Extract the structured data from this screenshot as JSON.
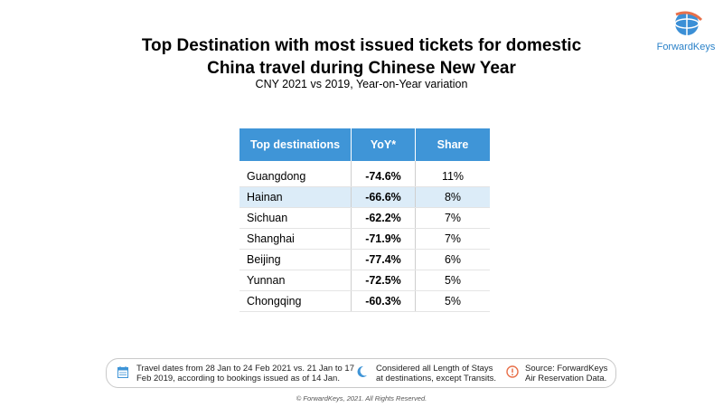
{
  "header": {
    "title_line1": "Top Destination with most issued tickets for domestic",
    "title_line2": "China travel during Chinese New Year",
    "subtitle": "CNY 2021 vs 2019, Year-on-Year variation"
  },
  "logo": {
    "text": "ForwardKeys",
    "icon": "globe-logo-icon"
  },
  "table": {
    "headers": [
      "Top destinations",
      "YoY*",
      "Share"
    ],
    "rows": [
      {
        "destination": "Guangdong",
        "yoy": "-74.6%",
        "share": "11%",
        "highlighted": false
      },
      {
        "destination": "Hainan",
        "yoy": "-66.6%",
        "share": "8%",
        "highlighted": true
      },
      {
        "destination": "Sichuan",
        "yoy": "-62.2%",
        "share": "7%",
        "highlighted": false
      },
      {
        "destination": "Shanghai",
        "yoy": "-71.9%",
        "share": "7%",
        "highlighted": false
      },
      {
        "destination": "Beijing",
        "yoy": "-77.4%",
        "share": "6%",
        "highlighted": false
      },
      {
        "destination": "Yunnan",
        "yoy": "-72.5%",
        "share": "5%",
        "highlighted": false
      },
      {
        "destination": "Chongqing",
        "yoy": "-60.3%",
        "share": "5%",
        "highlighted": false
      }
    ]
  },
  "footer": {
    "notes": [
      {
        "icon": "calendar-icon",
        "line1": "Travel dates from 28 Jan to 24 Feb 2021 vs. 21 Jan to 17",
        "line2": "Feb 2019, according to bookings issued as of 14 Jan."
      },
      {
        "icon": "moon-icon",
        "line1": "Considered all Length of Stays",
        "line2": "at destinations, except Transits."
      },
      {
        "icon": "info-icon",
        "line1": "Source: ForwardKeys",
        "line2": "Air Reservation Data."
      }
    ],
    "copyright": "© ForwardKeys, 2021. All Rights Reserved."
  },
  "colors": {
    "header_blue": "#3f95d7",
    "highlight_row": "#dcecf8",
    "info_orange": "#e8704a",
    "logo_blue": "#2b82c9"
  }
}
